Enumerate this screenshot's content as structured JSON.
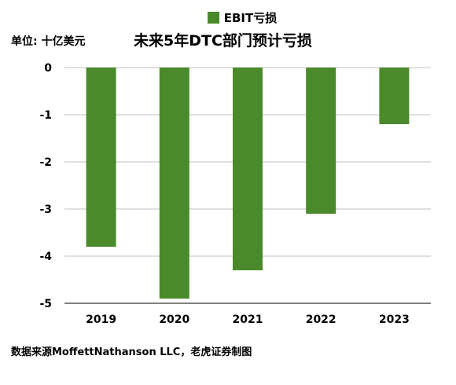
{
  "legend": {
    "label": "EBIT亏损"
  },
  "unit_label": "单位: 十亿美元",
  "source_label": "数据来源MoffettNathanson LLC，老虎证券制图",
  "colors": {
    "bar": "#4a8a2a",
    "grid": "#bfbfbf",
    "axis": "#000000"
  },
  "chart_data": {
    "type": "bar",
    "title": "未来5年DTC部门预计亏损",
    "xlabel": "",
    "ylabel": "",
    "categories": [
      "2019",
      "2020",
      "2021",
      "2022",
      "2023"
    ],
    "series": [
      {
        "name": "EBIT亏损",
        "values": [
          -3.8,
          -4.9,
          -4.3,
          -3.1,
          -1.2
        ]
      }
    ],
    "ylim": [
      -5,
      0
    ],
    "yticks": [
      0,
      -1,
      -2,
      -3,
      -4,
      -5
    ],
    "grid": true,
    "legend_position": "top-center"
  }
}
